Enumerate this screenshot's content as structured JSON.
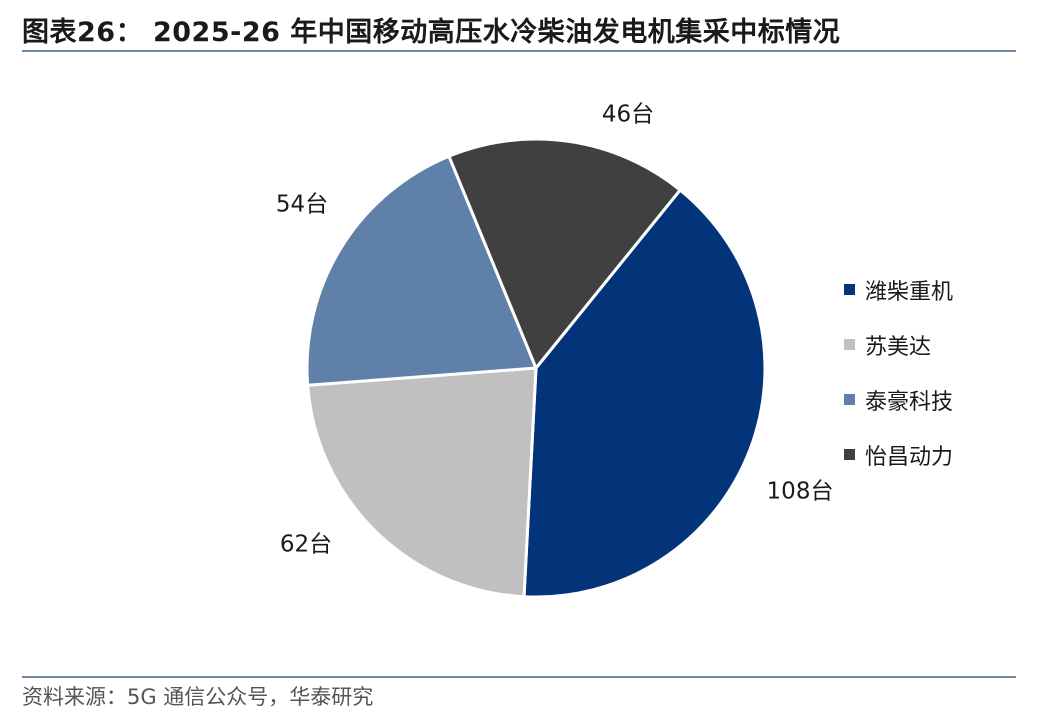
{
  "title": "图表26： 2025-26 年中国移动高压水冷柴油发电机集采中标情况",
  "source": "资料来源：5G 通信公众号，华泰研究",
  "chart_data": {
    "type": "pie",
    "unit": "台",
    "slices": [
      {
        "name": "潍柴重机",
        "value": 108,
        "label": "108台",
        "color": "#033479"
      },
      {
        "name": "苏美达",
        "value": 62,
        "label": "62台",
        "color": "#c0c0c0"
      },
      {
        "name": "泰豪科技",
        "value": 54,
        "label": "54台",
        "color": "#5e80a9"
      },
      {
        "name": "怡昌动力",
        "value": 46,
        "label": "46台",
        "color": "#404040"
      }
    ],
    "legend": [
      "潍柴重机",
      "苏美达",
      "泰豪科技",
      "怡昌动力"
    ],
    "legend_position": "right"
  }
}
